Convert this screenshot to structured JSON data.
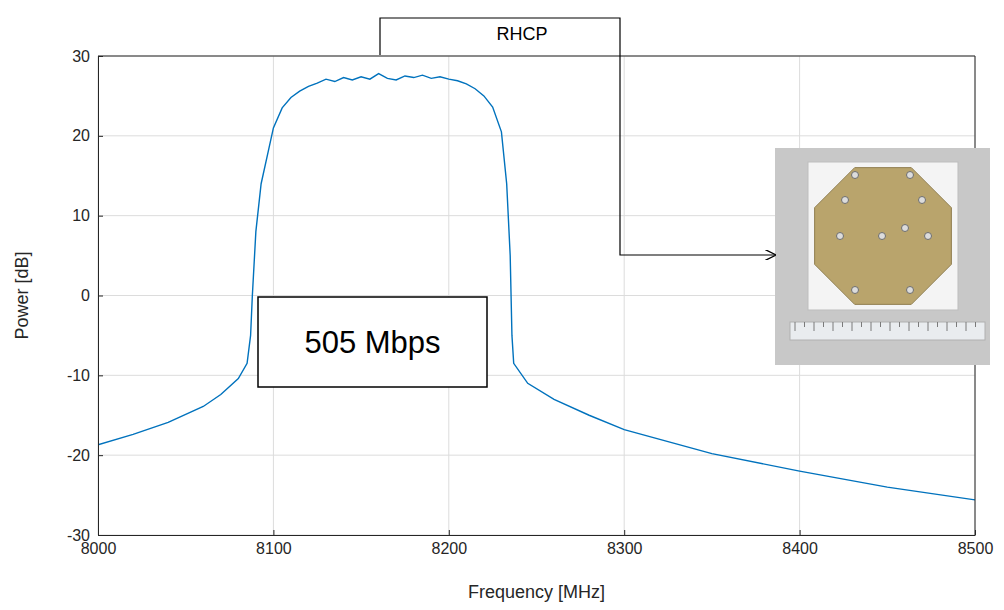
{
  "chart_data": {
    "type": "line",
    "x_label": "Frequency [MHz]",
    "y_label": "Power [dB]",
    "x": [
      8000,
      8020,
      8040,
      8060,
      8070,
      8080,
      8085,
      8087,
      8088,
      8090,
      8093,
      8097,
      8100,
      8105,
      8110,
      8115,
      8120,
      8125,
      8130,
      8135,
      8140,
      8145,
      8150,
      8155,
      8160,
      8165,
      8170,
      8175,
      8180,
      8185,
      8190,
      8195,
      8200,
      8205,
      8210,
      8215,
      8220,
      8225,
      8230,
      8233,
      8235,
      8236,
      8237,
      8245,
      8260,
      8280,
      8300,
      8350,
      8400,
      8450,
      8500
    ],
    "values": [
      -18.7,
      -17.4,
      -15.9,
      -13.9,
      -12.4,
      -10.4,
      -8.5,
      -5,
      0,
      8,
      14,
      18,
      21,
      23.5,
      24.8,
      25.6,
      26.2,
      26.6,
      27.1,
      26.8,
      27.3,
      27.0,
      27.4,
      27.1,
      27.8,
      27.2,
      27.0,
      27.5,
      27.3,
      27.6,
      27.2,
      27.4,
      27.1,
      26.9,
      26.5,
      25.9,
      25.0,
      23.6,
      20.5,
      14,
      5,
      -5,
      -8.5,
      -11,
      -13,
      -15,
      -16.8,
      -19.8,
      -22,
      -24,
      -25.6
    ],
    "color": "#0072bd",
    "xlim": [
      8000,
      8500
    ],
    "ylim": [
      -30,
      30
    ],
    "xticks": [
      8000,
      8100,
      8200,
      8300,
      8400,
      8500
    ],
    "yticks": [
      -30,
      -20,
      -10,
      0,
      10,
      20,
      30
    ],
    "grid": true,
    "annotations": [
      {
        "text": "505 Mbps"
      },
      {
        "text": "RHCP"
      }
    ]
  }
}
